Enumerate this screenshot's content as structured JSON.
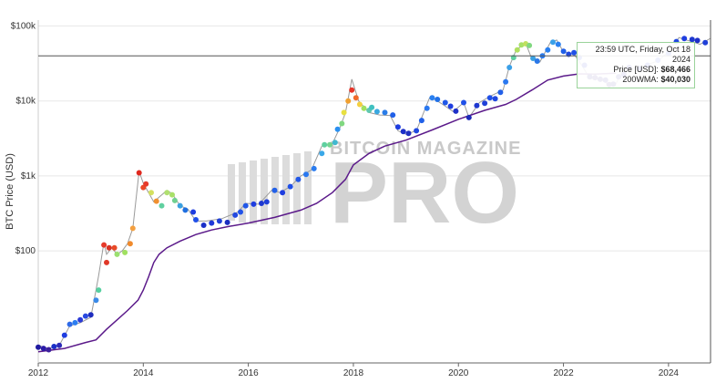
{
  "chart_data": {
    "type": "scatter",
    "title": "",
    "ylabel": "BTC Price (USD)",
    "xlabel": "",
    "yscale": "log",
    "xlim": [
      2012.0,
      2024.8
    ],
    "ylim": [
      3.2,
      120000
    ],
    "y_ticks": [
      {
        "value": 100,
        "label": "$100"
      },
      {
        "value": 1000,
        "label": "$1k"
      },
      {
        "value": 10000,
        "label": "$10k"
      },
      {
        "value": 100000,
        "label": "$100k"
      }
    ],
    "x_ticks": [
      {
        "value": 2012,
        "label": "2012"
      },
      {
        "value": 2014,
        "label": "2014"
      },
      {
        "value": 2016,
        "label": "2016"
      },
      {
        "value": 2018,
        "label": "2018"
      },
      {
        "value": 2020,
        "label": "2020"
      },
      {
        "value": 2022,
        "label": "2022"
      },
      {
        "value": 2024,
        "label": "2024"
      }
    ],
    "price_series": [
      [
        2012.0,
        5.5
      ],
      [
        2012.2,
        5
      ],
      [
        2012.4,
        5.5
      ],
      [
        2012.6,
        10
      ],
      [
        2012.8,
        11
      ],
      [
        2013.0,
        13
      ],
      [
        2013.1,
        30
      ],
      [
        2013.15,
        47
      ],
      [
        2013.25,
        130
      ],
      [
        2013.3,
        90
      ],
      [
        2013.4,
        110
      ],
      [
        2013.5,
        90
      ],
      [
        2013.6,
        100
      ],
      [
        2013.7,
        125
      ],
      [
        2013.8,
        200
      ],
      [
        2013.92,
        1150
      ],
      [
        2014.0,
        800
      ],
      [
        2014.1,
        600
      ],
      [
        2014.2,
        450
      ],
      [
        2014.3,
        520
      ],
      [
        2014.45,
        640
      ],
      [
        2014.55,
        580
      ],
      [
        2014.7,
        400
      ],
      [
        2014.85,
        360
      ],
      [
        2015.0,
        250
      ],
      [
        2015.2,
        250
      ],
      [
        2015.5,
        270
      ],
      [
        2015.8,
        330
      ],
      [
        2015.95,
        430
      ],
      [
        2016.2,
        420
      ],
      [
        2016.45,
        650
      ],
      [
        2016.6,
        600
      ],
      [
        2016.8,
        720
      ],
      [
        2017.0,
        1000
      ],
      [
        2017.2,
        1200
      ],
      [
        2017.4,
        2500
      ],
      [
        2017.6,
        2700
      ],
      [
        2017.75,
        4500
      ],
      [
        2017.85,
        7000
      ],
      [
        2017.97,
        19500
      ],
      [
        2018.1,
        10000
      ],
      [
        2018.3,
        7000
      ],
      [
        2018.5,
        6500
      ],
      [
        2018.7,
        6400
      ],
      [
        2018.85,
        4000
      ],
      [
        2019.0,
        3600
      ],
      [
        2019.2,
        4000
      ],
      [
        2019.45,
        11000
      ],
      [
        2019.55,
        10500
      ],
      [
        2019.7,
        9000
      ],
      [
        2019.9,
        7200
      ],
      [
        2020.1,
        9500
      ],
      [
        2020.2,
        6000
      ],
      [
        2020.4,
        9500
      ],
      [
        2020.6,
        11500
      ],
      [
        2020.85,
        14000
      ],
      [
        2020.97,
        29000
      ],
      [
        2021.1,
        48000
      ],
      [
        2021.28,
        59000
      ],
      [
        2021.4,
        36000
      ],
      [
        2021.55,
        33000
      ],
      [
        2021.75,
        60000
      ],
      [
        2021.87,
        65000
      ],
      [
        2022.0,
        45000
      ],
      [
        2022.2,
        42000
      ],
      [
        2022.35,
        30000
      ],
      [
        2022.5,
        20000
      ],
      [
        2022.7,
        19500
      ],
      [
        2022.87,
        16500
      ],
      [
        2023.0,
        17000
      ],
      [
        2023.15,
        28000
      ],
      [
        2023.3,
        27000
      ],
      [
        2023.55,
        30000
      ],
      [
        2023.8,
        34000
      ],
      [
        2023.98,
        44000
      ],
      [
        2024.2,
        70000
      ],
      [
        2024.3,
        66000
      ],
      [
        2024.45,
        62000
      ],
      [
        2024.6,
        57000
      ],
      [
        2024.8,
        68466
      ]
    ],
    "dots": [
      {
        "x": 2012.0,
        "y": 5.2,
        "c": "#1f1aa0"
      },
      {
        "x": 2012.1,
        "y": 5.0,
        "c": "#2a1aa8"
      },
      {
        "x": 2012.2,
        "y": 4.8,
        "c": "#3b1f9e"
      },
      {
        "x": 2012.3,
        "y": 5.3,
        "c": "#1a2fc8"
      },
      {
        "x": 2012.4,
        "y": 5.5,
        "c": "#2b2ab8"
      },
      {
        "x": 2012.5,
        "y": 7.5,
        "c": "#1f3ee0"
      },
      {
        "x": 2012.6,
        "y": 10.5,
        "c": "#2f6ae8"
      },
      {
        "x": 2012.7,
        "y": 11,
        "c": "#2c7df0"
      },
      {
        "x": 2012.8,
        "y": 12,
        "c": "#2a3ad8"
      },
      {
        "x": 2012.9,
        "y": 13.5,
        "c": "#2a4ae0"
      },
      {
        "x": 2013.0,
        "y": 14,
        "c": "#1e2dbf"
      },
      {
        "x": 2013.1,
        "y": 22,
        "c": "#3a8ae8"
      },
      {
        "x": 2013.15,
        "y": 30,
        "c": "#56d0a0"
      },
      {
        "x": 2013.25,
        "y": 120,
        "c": "#e63a2a"
      },
      {
        "x": 2013.3,
        "y": 70,
        "c": "#e03828"
      },
      {
        "x": 2013.35,
        "y": 110,
        "c": "#d83325"
      },
      {
        "x": 2013.45,
        "y": 110,
        "c": "#e84a28"
      },
      {
        "x": 2013.5,
        "y": 90,
        "c": "#9be070"
      },
      {
        "x": 2013.65,
        "y": 95,
        "c": "#a0e060"
      },
      {
        "x": 2013.75,
        "y": 125,
        "c": "#f08a2c"
      },
      {
        "x": 2013.8,
        "y": 200,
        "c": "#f4a040"
      },
      {
        "x": 2013.92,
        "y": 1100,
        "c": "#e0281e"
      },
      {
        "x": 2014.0,
        "y": 700,
        "c": "#ea4828"
      },
      {
        "x": 2014.05,
        "y": 780,
        "c": "#e63a2a"
      },
      {
        "x": 2014.15,
        "y": 600,
        "c": "#d4e060"
      },
      {
        "x": 2014.25,
        "y": 460,
        "c": "#f09030"
      },
      {
        "x": 2014.35,
        "y": 400,
        "c": "#60d0a0"
      },
      {
        "x": 2014.45,
        "y": 600,
        "c": "#b0e070"
      },
      {
        "x": 2014.55,
        "y": 560,
        "c": "#a8e068"
      },
      {
        "x": 2014.6,
        "y": 470,
        "c": "#70d090"
      },
      {
        "x": 2014.7,
        "y": 400,
        "c": "#3aa0e0"
      },
      {
        "x": 2014.8,
        "y": 350,
        "c": "#2070e0"
      },
      {
        "x": 2014.95,
        "y": 330,
        "c": "#1f3ee0"
      },
      {
        "x": 2015.0,
        "y": 260,
        "c": "#2050e8"
      },
      {
        "x": 2015.15,
        "y": 220,
        "c": "#1a2fc8"
      },
      {
        "x": 2015.3,
        "y": 235,
        "c": "#1f38d8"
      },
      {
        "x": 2015.45,
        "y": 250,
        "c": "#2040d8"
      },
      {
        "x": 2015.6,
        "y": 240,
        "c": "#1c2fc0"
      },
      {
        "x": 2015.75,
        "y": 300,
        "c": "#2248e0"
      },
      {
        "x": 2015.85,
        "y": 330,
        "c": "#2252e8"
      },
      {
        "x": 2015.95,
        "y": 400,
        "c": "#2258e8"
      },
      {
        "x": 2016.1,
        "y": 420,
        "c": "#1f3ee0"
      },
      {
        "x": 2016.25,
        "y": 430,
        "c": "#1e38d0"
      },
      {
        "x": 2016.35,
        "y": 450,
        "c": "#2040d8"
      },
      {
        "x": 2016.5,
        "y": 640,
        "c": "#2260e8"
      },
      {
        "x": 2016.65,
        "y": 600,
        "c": "#1f3ee0"
      },
      {
        "x": 2016.8,
        "y": 720,
        "c": "#2050e8"
      },
      {
        "x": 2016.95,
        "y": 900,
        "c": "#2258e8"
      },
      {
        "x": 2017.1,
        "y": 1050,
        "c": "#2a78f0"
      },
      {
        "x": 2017.25,
        "y": 1250,
        "c": "#2a7cf0"
      },
      {
        "x": 2017.4,
        "y": 2000,
        "c": "#3aa8e8"
      },
      {
        "x": 2017.45,
        "y": 2600,
        "c": "#60d0a0"
      },
      {
        "x": 2017.55,
        "y": 2600,
        "c": "#74d490"
      },
      {
        "x": 2017.65,
        "y": 2800,
        "c": "#40b8d0"
      },
      {
        "x": 2017.7,
        "y": 4200,
        "c": "#2a90f0"
      },
      {
        "x": 2017.78,
        "y": 5000,
        "c": "#80d880"
      },
      {
        "x": 2017.82,
        "y": 7000,
        "c": "#e8e040"
      },
      {
        "x": 2017.9,
        "y": 10000,
        "c": "#f0a030"
      },
      {
        "x": 2017.97,
        "y": 14000,
        "c": "#e83428"
      },
      {
        "x": 2018.05,
        "y": 11000,
        "c": "#f06a2c"
      },
      {
        "x": 2018.12,
        "y": 9000,
        "c": "#f4d040"
      },
      {
        "x": 2018.2,
        "y": 8000,
        "c": "#a0e060"
      },
      {
        "x": 2018.3,
        "y": 7500,
        "c": "#60c8b0"
      },
      {
        "x": 2018.35,
        "y": 8200,
        "c": "#40c0c0"
      },
      {
        "x": 2018.45,
        "y": 7200,
        "c": "#3aa8e0"
      },
      {
        "x": 2018.6,
        "y": 7000,
        "c": "#2a7ce8"
      },
      {
        "x": 2018.75,
        "y": 6500,
        "c": "#2060e8"
      },
      {
        "x": 2018.85,
        "y": 4500,
        "c": "#1f3ee0"
      },
      {
        "x": 2018.95,
        "y": 3900,
        "c": "#1c2fc8"
      },
      {
        "x": 2019.05,
        "y": 3700,
        "c": "#1f2fbf"
      },
      {
        "x": 2019.2,
        "y": 4000,
        "c": "#2048e0"
      },
      {
        "x": 2019.3,
        "y": 5500,
        "c": "#2060e8"
      },
      {
        "x": 2019.4,
        "y": 8000,
        "c": "#2a78f0"
      },
      {
        "x": 2019.5,
        "y": 11000,
        "c": "#2a80f0"
      },
      {
        "x": 2019.6,
        "y": 10500,
        "c": "#2070e8"
      },
      {
        "x": 2019.75,
        "y": 9500,
        "c": "#2058e8"
      },
      {
        "x": 2019.85,
        "y": 8500,
        "c": "#1f3ee0"
      },
      {
        "x": 2019.95,
        "y": 7300,
        "c": "#1e30c8"
      },
      {
        "x": 2020.1,
        "y": 9500,
        "c": "#2050e8"
      },
      {
        "x": 2020.2,
        "y": 6000,
        "c": "#1c2bb8"
      },
      {
        "x": 2020.35,
        "y": 8700,
        "c": "#1e38d0"
      },
      {
        "x": 2020.5,
        "y": 9300,
        "c": "#1f40d8"
      },
      {
        "x": 2020.6,
        "y": 11000,
        "c": "#2050e8"
      },
      {
        "x": 2020.7,
        "y": 10700,
        "c": "#2048e0"
      },
      {
        "x": 2020.8,
        "y": 13000,
        "c": "#2260e8"
      },
      {
        "x": 2020.9,
        "y": 18000,
        "c": "#2a78f0"
      },
      {
        "x": 2020.97,
        "y": 28000,
        "c": "#3aa0e8"
      },
      {
        "x": 2021.05,
        "y": 38000,
        "c": "#60d0a0"
      },
      {
        "x": 2021.12,
        "y": 48000,
        "c": "#b0e060"
      },
      {
        "x": 2021.2,
        "y": 56000,
        "c": "#a8e068"
      },
      {
        "x": 2021.28,
        "y": 58000,
        "c": "#c0e060"
      },
      {
        "x": 2021.35,
        "y": 55000,
        "c": "#80d880"
      },
      {
        "x": 2021.42,
        "y": 37000,
        "c": "#3aa0e0"
      },
      {
        "x": 2021.5,
        "y": 34000,
        "c": "#2a78e8"
      },
      {
        "x": 2021.6,
        "y": 40000,
        "c": "#2a7cf0"
      },
      {
        "x": 2021.7,
        "y": 48000,
        "c": "#2a80f0"
      },
      {
        "x": 2021.8,
        "y": 61000,
        "c": "#3aa0e8"
      },
      {
        "x": 2021.9,
        "y": 57000,
        "c": "#2a80f0"
      },
      {
        "x": 2022.0,
        "y": 46000,
        "c": "#2060e8"
      },
      {
        "x": 2022.1,
        "y": 42000,
        "c": "#1f48e0"
      },
      {
        "x": 2022.2,
        "y": 44000,
        "c": "#2050e8"
      },
      {
        "x": 2022.3,
        "y": 38000,
        "c": "#1f3ee0"
      },
      {
        "x": 2022.4,
        "y": 30000,
        "c": "#1e30c8"
      },
      {
        "x": 2022.5,
        "y": 21000,
        "c": "#2a1a90"
      },
      {
        "x": 2022.6,
        "y": 20500,
        "c": "#3a1a88"
      },
      {
        "x": 2022.7,
        "y": 19500,
        "c": "#301a90"
      },
      {
        "x": 2022.8,
        "y": 19000,
        "c": "#2a1a98"
      },
      {
        "x": 2022.87,
        "y": 16500,
        "c": "#3a1a80"
      },
      {
        "x": 2022.95,
        "y": 16800,
        "c": "#2f1a90"
      },
      {
        "x": 2023.05,
        "y": 21000,
        "c": "#261a98"
      },
      {
        "x": 2023.15,
        "y": 22500,
        "c": "#2a1aa0"
      },
      {
        "x": 2023.25,
        "y": 28000,
        "c": "#1f1aa8"
      },
      {
        "x": 2023.45,
        "y": 27000,
        "c": "#1c2bb8"
      },
      {
        "x": 2023.6,
        "y": 30000,
        "c": "#1e30c8"
      },
      {
        "x": 2023.8,
        "y": 35000,
        "c": "#1f3ee0"
      },
      {
        "x": 2024.0,
        "y": 43000,
        "c": "#2040d8"
      },
      {
        "x": 2024.15,
        "y": 62000,
        "c": "#2048e0"
      },
      {
        "x": 2024.3,
        "y": 68000,
        "c": "#1f3ee0"
      },
      {
        "x": 2024.45,
        "y": 66000,
        "c": "#1e38d0"
      },
      {
        "x": 2024.55,
        "y": 64000,
        "c": "#1e30c8"
      },
      {
        "x": 2024.7,
        "y": 60000,
        "c": "#2040d8"
      }
    ],
    "wma200": [
      [
        2012.0,
        4.5
      ],
      [
        2012.5,
        5.0
      ],
      [
        2012.9,
        6.0
      ],
      [
        2013.1,
        6.5
      ],
      [
        2013.3,
        9
      ],
      [
        2013.5,
        12
      ],
      [
        2013.7,
        16
      ],
      [
        2013.9,
        22
      ],
      [
        2014.0,
        30
      ],
      [
        2014.1,
        45
      ],
      [
        2014.2,
        70
      ],
      [
        2014.3,
        90
      ],
      [
        2014.45,
        110
      ],
      [
        2014.7,
        135
      ],
      [
        2015.0,
        165
      ],
      [
        2015.3,
        190
      ],
      [
        2015.6,
        210
      ],
      [
        2016.0,
        235
      ],
      [
        2016.5,
        280
      ],
      [
        2017.0,
        350
      ],
      [
        2017.3,
        430
      ],
      [
        2017.6,
        600
      ],
      [
        2017.85,
        900
      ],
      [
        2018.0,
        1400
      ],
      [
        2018.3,
        2000
      ],
      [
        2018.6,
        2500
      ],
      [
        2019.0,
        3000
      ],
      [
        2019.5,
        4100
      ],
      [
        2020.0,
        5700
      ],
      [
        2020.5,
        7500
      ],
      [
        2020.9,
        9000
      ],
      [
        2021.1,
        10500
      ],
      [
        2021.4,
        14000
      ],
      [
        2021.7,
        19000
      ],
      [
        2022.0,
        21500
      ],
      [
        2022.3,
        23000
      ],
      [
        2022.6,
        22800
      ],
      [
        2022.8,
        23200
      ],
      [
        2023.0,
        23500
      ]
    ],
    "crosshair": {
      "x": 2024.8,
      "y": 40030
    },
    "tooltip": {
      "time": "23:59 UTC, Friday, Oct 18 2024",
      "price_label": "Price [USD]:",
      "price_value": "$68,466",
      "wma_label": "200WMA:",
      "wma_value": "$40,030"
    },
    "watermark": {
      "small": "BITCOIN MAGAZINE",
      "big": "PRO"
    },
    "colors": {
      "wma_line": "#5b1a8a",
      "price_line": "#9a9a9a",
      "grid": "#e8e8e8",
      "crosshair": "#555555"
    }
  }
}
